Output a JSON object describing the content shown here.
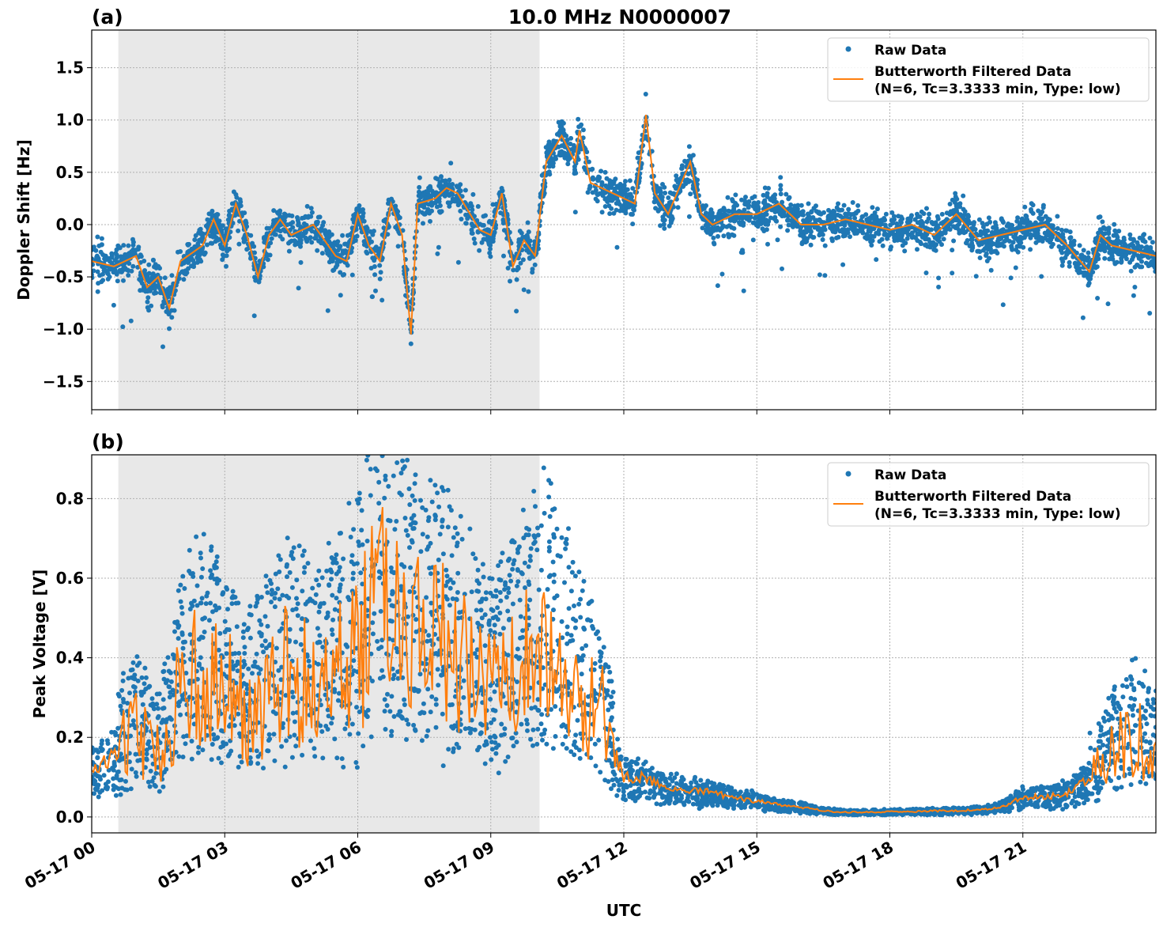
{
  "chart_data": [
    {
      "type": "scatter",
      "panel_label": "(a)",
      "title": "10.0 MHz N0000007",
      "xlabel": "",
      "ylabel": "Doppler Shift [Hz]",
      "xlim_hours_utc": [
        0,
        24
      ],
      "ylim": [
        -1.77,
        1.86
      ],
      "yticks": [
        -1.5,
        -1.0,
        -0.5,
        0.0,
        0.5,
        1.0,
        1.5
      ],
      "ytick_labels": [
        "−1.5",
        "−1.0",
        "−0.5",
        "0.0",
        "0.5",
        "1.0",
        "1.5"
      ],
      "grid": true,
      "legend_placement": "upper-right",
      "shaded_interval_hours_utc": [
        0.6,
        10.1
      ],
      "shade_color": "#e8e8e8",
      "series": [
        {
          "name": "Raw Data",
          "kind": "points",
          "color": "#1f77b4"
        },
        {
          "name": "Butterworth Filtered Data",
          "name_line2": "(N=6, Tc=3.3333 min, Type: low)",
          "kind": "line",
          "color": "#ff7f0e",
          "x": [
            0,
            0.5,
            1.0,
            1.25,
            1.5,
            1.75,
            2.0,
            2.5,
            2.75,
            3.0,
            3.25,
            3.5,
            3.75,
            4.0,
            4.25,
            4.5,
            5.0,
            5.5,
            5.75,
            6.0,
            6.25,
            6.5,
            6.75,
            7.0,
            7.2,
            7.35,
            7.75,
            8.0,
            8.25,
            8.75,
            9.0,
            9.25,
            9.5,
            9.75,
            10.0,
            10.25,
            10.6,
            10.9,
            11.0,
            11.25,
            11.75,
            12.0,
            12.25,
            12.5,
            12.7,
            13.0,
            13.5,
            13.75,
            14.0,
            14.5,
            15.0,
            15.5,
            16.0,
            16.5,
            17.0,
            17.5,
            18.0,
            18.5,
            19.0,
            19.5,
            20.0,
            20.5,
            21.0,
            21.5,
            22.0,
            22.5,
            22.75,
            23.0,
            23.5,
            24.0
          ],
          "y": [
            -0.35,
            -0.4,
            -0.3,
            -0.6,
            -0.5,
            -0.8,
            -0.35,
            -0.2,
            0.05,
            -0.2,
            0.2,
            -0.1,
            -0.5,
            -0.1,
            0.05,
            -0.1,
            0.0,
            -0.3,
            -0.35,
            0.1,
            -0.2,
            -0.35,
            0.2,
            -0.1,
            -1.05,
            0.2,
            0.25,
            0.35,
            0.3,
            -0.05,
            -0.1,
            0.3,
            -0.4,
            -0.15,
            -0.3,
            0.6,
            0.85,
            0.6,
            0.9,
            0.4,
            0.3,
            0.25,
            0.2,
            1.05,
            0.3,
            0.1,
            0.6,
            0.1,
            0.0,
            0.1,
            0.1,
            0.2,
            0.0,
            0.0,
            0.05,
            0.0,
            -0.05,
            0.0,
            -0.1,
            0.1,
            -0.15,
            -0.1,
            -0.05,
            0.0,
            -0.2,
            -0.45,
            -0.1,
            -0.2,
            -0.25,
            -0.3
          ]
        }
      ]
    },
    {
      "type": "scatter",
      "panel_label": "(b)",
      "xlabel": "UTC",
      "ylabel": "Peak Voltage [V]",
      "xlim_hours_utc": [
        0,
        24
      ],
      "ylim": [
        -0.04,
        0.91
      ],
      "yticks": [
        0.0,
        0.2,
        0.4,
        0.6,
        0.8
      ],
      "ytick_labels": [
        "0.0",
        "0.2",
        "0.4",
        "0.6",
        "0.8"
      ],
      "xticks_hours": [
        0,
        3,
        6,
        9,
        12,
        15,
        18,
        21
      ],
      "xtick_labels": [
        "05-17 00",
        "05-17 03",
        "05-17 06",
        "05-17 09",
        "05-17 12",
        "05-17 15",
        "05-17 18",
        "05-17 21"
      ],
      "grid": true,
      "legend_placement": "upper-right",
      "shaded_interval_hours_utc": [
        0.6,
        10.1
      ],
      "series": [
        {
          "name": "Raw Data",
          "kind": "points",
          "color": "#1f77b4"
        },
        {
          "name": "Butterworth Filtered Data",
          "name_line2": "(N=6, Tc=3.3333 min, Type: low)",
          "kind": "line",
          "color": "#ff7f0e",
          "x": [
            0,
            0.5,
            1,
            1.5,
            2,
            2.5,
            3,
            3.5,
            4,
            4.5,
            5,
            5.5,
            6,
            6.5,
            7,
            7.5,
            8,
            8.5,
            9,
            9.5,
            10,
            10.5,
            11,
            11.5,
            12,
            12.5,
            13,
            13.5,
            14,
            14.5,
            15,
            15.5,
            16,
            16.5,
            17,
            17.5,
            18,
            18.5,
            19,
            19.5,
            20,
            20.5,
            21,
            21.5,
            22,
            22.5,
            23,
            23.5,
            24
          ],
          "y": [
            0.12,
            0.15,
            0.2,
            0.15,
            0.3,
            0.35,
            0.3,
            0.25,
            0.3,
            0.35,
            0.3,
            0.35,
            0.4,
            0.5,
            0.45,
            0.4,
            0.4,
            0.35,
            0.3,
            0.35,
            0.4,
            0.4,
            0.3,
            0.25,
            0.1,
            0.1,
            0.07,
            0.07,
            0.06,
            0.05,
            0.04,
            0.03,
            0.025,
            0.015,
            0.012,
            0.012,
            0.013,
            0.013,
            0.015,
            0.016,
            0.018,
            0.025,
            0.05,
            0.05,
            0.06,
            0.1,
            0.15,
            0.2,
            0.15
          ]
        }
      ]
    }
  ]
}
